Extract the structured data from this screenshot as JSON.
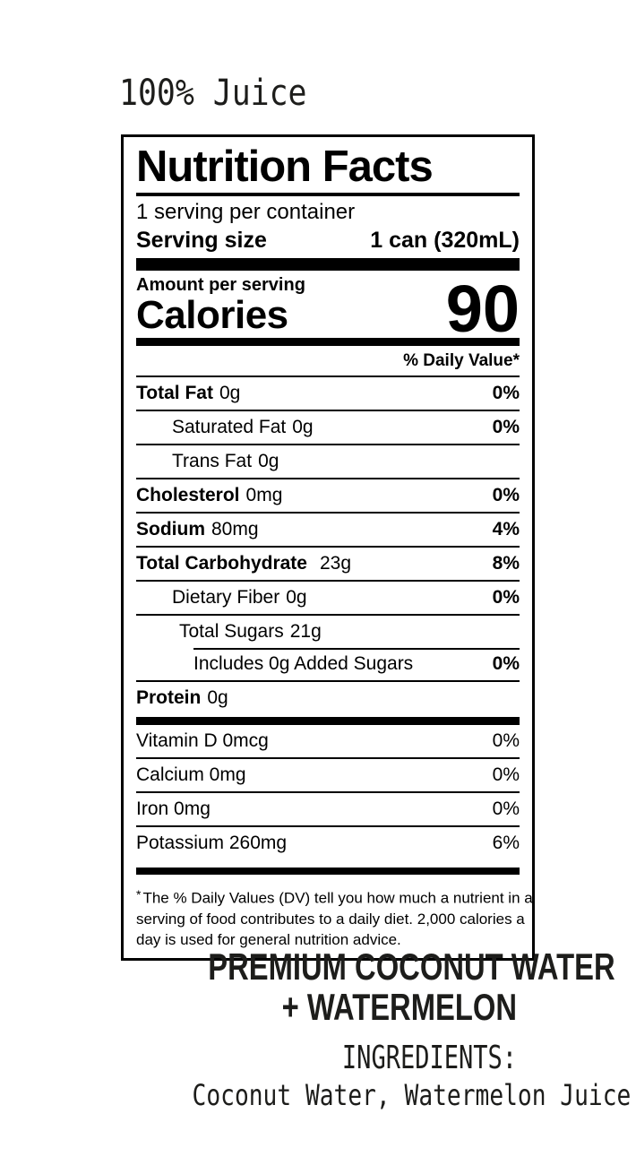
{
  "header": {
    "juice_label": "100% Juice"
  },
  "nutrition_facts": {
    "title": "Nutrition Facts",
    "servings_per_container": "1 serving per container",
    "serving_size": {
      "label": "Serving size",
      "value": "1 can (320mL)"
    },
    "calories": {
      "context": "Amount per serving",
      "label": "Calories",
      "value": "90"
    },
    "daily_value_header": "% Daily Value*",
    "nutrients": [
      {
        "label": "Total Fat",
        "amount": "0g",
        "dv": "0%"
      },
      {
        "label": "Saturated Fat",
        "amount": "0g",
        "dv": "0%"
      },
      {
        "label": "Trans Fat",
        "amount": "0g",
        "dv": ""
      },
      {
        "label": "Cholesterol",
        "amount": "0mg",
        "dv": "0%"
      },
      {
        "label": "Sodium",
        "amount": "80mg",
        "dv": "4%"
      },
      {
        "label": "Total Carbohydrate",
        "amount": "23g",
        "dv": "8%"
      },
      {
        "label": "Dietary Fiber",
        "amount": "0g",
        "dv": "0%"
      },
      {
        "label": "Total Sugars",
        "amount": "21g",
        "dv": ""
      },
      {
        "label": "Includes 0g Added Sugars",
        "amount": "",
        "dv": "0%"
      },
      {
        "label": "Protein",
        "amount": "0g",
        "dv": ""
      }
    ],
    "minerals": [
      {
        "label": "Vitamin D 0mcg",
        "dv": "0%"
      },
      {
        "label": "Calcium 0mg",
        "dv": "0%"
      },
      {
        "label": "Iron 0mg",
        "dv": "0%"
      },
      {
        "label": "Potassium 260mg",
        "dv": "6%"
      }
    ],
    "footnote_mark": "*",
    "footnote_lines": [
      "The % Daily Values (DV) tell you how much a nutrient in a",
      "serving of food contributes to a daily diet. 2,000 calories a",
      "day is used for general nutrition advice."
    ]
  },
  "product": {
    "name_line1": "PREMIUM COCONUT WATER",
    "name_line2": "+ WATERMELON",
    "ingredients_heading": "INGREDIENTS:",
    "ingredients_list": "Coconut Water, Watermelon Juice"
  },
  "colors": {
    "panel_text": "#000000",
    "outer_text": "#1d1d1b",
    "background": "#ffffff"
  }
}
